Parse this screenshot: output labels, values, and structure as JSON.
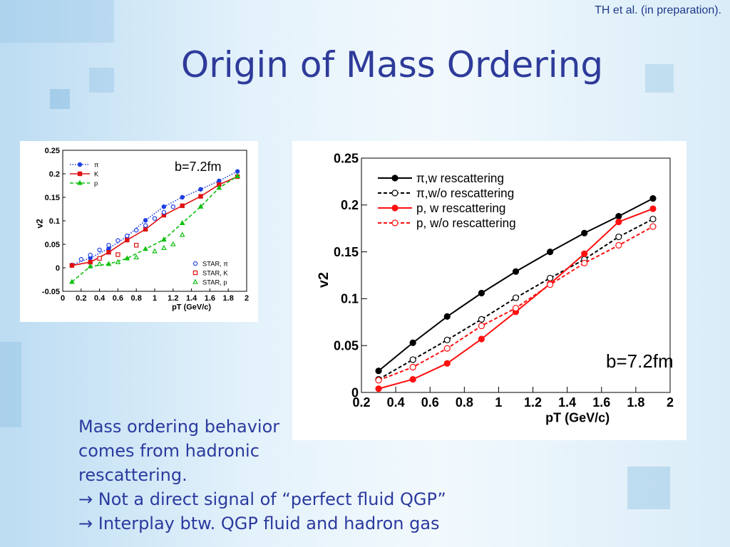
{
  "citation": "TH et al. (in preparation).",
  "title": "Origin of Mass Ordering",
  "body": [
    "Mass ordering behavior",
    "comes from hadronic",
    "rescattering.",
    "→ Not a direct signal of “perfect fluid QGP”",
    "→ Interplay btw. QGP fluid and hadron gas"
  ],
  "chart_data": [
    {
      "type": "line",
      "annotation": "b=7.2fm",
      "x_label": "pT (GeV/c)",
      "y_label": "v2",
      "xlim": [
        0,
        2
      ],
      "xticks": [
        0,
        0.2,
        0.4,
        0.6,
        0.8,
        1,
        1.2,
        1.4,
        1.6,
        1.8,
        2
      ],
      "ylim": [
        -0.05,
        0.25
      ],
      "yticks": [
        -0.05,
        0,
        0.05,
        0.1,
        0.15,
        0.2,
        0.25
      ],
      "x": [
        0.1,
        0.3,
        0.5,
        0.7,
        0.9,
        1.1,
        1.3,
        1.5,
        1.7,
        1.9
      ],
      "series": [
        {
          "name": "π",
          "color": "#1f3fe0",
          "line": "dotted",
          "marker": "circle",
          "values": [
            0.006,
            0.021,
            0.041,
            0.067,
            0.101,
            0.13,
            0.15,
            0.167,
            0.185,
            0.205
          ]
        },
        {
          "name": "K",
          "color": "#e01010",
          "line": "solid",
          "marker": "square",
          "values": [
            0.005,
            0.012,
            0.033,
            0.059,
            0.082,
            0.112,
            0.132,
            0.152,
            0.177,
            0.194
          ]
        },
        {
          "name": "p",
          "color": "#10c010",
          "line": "dashed",
          "marker": "triangle",
          "values": [
            -0.03,
            0.003,
            0.008,
            0.02,
            0.04,
            0.06,
            0.095,
            0.13,
            0.17,
            0.195
          ]
        },
        {
          "name": "STAR, π",
          "color": "#1f3fe0",
          "line": "none",
          "marker": "open-circle",
          "x": [
            0.2,
            0.3,
            0.4,
            0.5,
            0.6,
            0.7,
            0.8,
            0.9,
            1.0,
            1.1,
            1.2
          ],
          "values": [
            0.018,
            0.027,
            0.038,
            0.048,
            0.058,
            0.068,
            0.08,
            0.09,
            0.105,
            0.118,
            0.13
          ]
        },
        {
          "name": "STAR, K",
          "color": "#e01010",
          "line": "none",
          "marker": "open-square",
          "x": [
            0.4,
            0.6,
            0.8
          ],
          "values": [
            0.02,
            0.028,
            0.048
          ]
        },
        {
          "name": "STAR, p",
          "color": "#10c010",
          "line": "none",
          "marker": "open-triangle",
          "x": [
            0.4,
            0.6,
            0.8,
            1.0,
            1.1,
            1.2,
            1.3
          ],
          "values": [
            0.008,
            0.012,
            0.022,
            0.035,
            0.042,
            0.05,
            0.07
          ]
        }
      ]
    },
    {
      "type": "line",
      "annotation": "b=7.2fm",
      "x_label": "pT (GeV/c)",
      "y_label": "v2",
      "xlim": [
        0.2,
        2
      ],
      "xticks": [
        0.2,
        0.4,
        0.6,
        0.8,
        1,
        1.2,
        1.4,
        1.6,
        1.8,
        2
      ],
      "ylim": [
        0,
        0.25
      ],
      "yticks": [
        0,
        0.05,
        0.1,
        0.15,
        0.2,
        0.25
      ],
      "x": [
        0.3,
        0.5,
        0.7,
        0.9,
        1.1,
        1.3,
        1.5,
        1.7,
        1.9
      ],
      "series": [
        {
          "name": "π,w rescattering",
          "color": "#000000",
          "line": "solid",
          "marker": "circle",
          "values": [
            0.023,
            0.053,
            0.081,
            0.106,
            0.129,
            0.15,
            0.17,
            0.188,
            0.207
          ]
        },
        {
          "name": "π,w/o rescattering",
          "color": "#000000",
          "line": "dashed",
          "marker": "open-circle",
          "values": [
            0.014,
            0.035,
            0.056,
            0.078,
            0.101,
            0.122,
            0.142,
            0.166,
            0.185
          ]
        },
        {
          "name": "p, w rescattering",
          "color": "#ff1010",
          "line": "solid",
          "marker": "circle",
          "values": [
            0.004,
            0.014,
            0.031,
            0.057,
            0.086,
            0.116,
            0.148,
            0.182,
            0.196
          ]
        },
        {
          "name": "p, w/o rescattering",
          "color": "#ff1010",
          "line": "dashed",
          "marker": "open-circle",
          "values": [
            0.013,
            0.027,
            0.047,
            0.071,
            0.09,
            0.115,
            0.138,
            0.157,
            0.177
          ]
        }
      ]
    }
  ]
}
